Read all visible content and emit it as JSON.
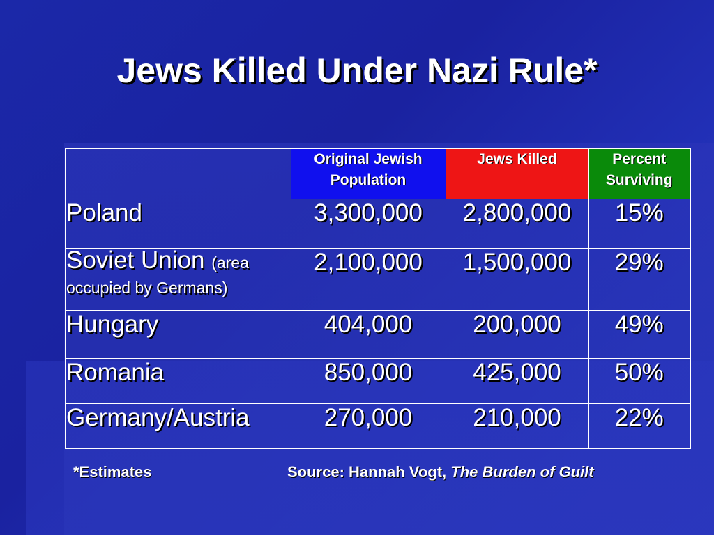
{
  "slide": {
    "title": "Jews Killed Under Nazi Rule*"
  },
  "table": {
    "headers": [
      {
        "label": "",
        "color": ""
      },
      {
        "label": "Original Jewish Population",
        "color": "#1010ee"
      },
      {
        "label": "Jews Killed",
        "color": "#ee1515"
      },
      {
        "label": "Percent Surviving",
        "color": "#0a8a0a"
      }
    ],
    "rows": [
      {
        "country": "Poland",
        "note": "",
        "note2": "",
        "population": "3,300,000",
        "killed": "2,800,000",
        "surviving": "15%"
      },
      {
        "country": "Soviet Union",
        "note": "(area",
        "note2": "occupied by Germans)",
        "population": "2,100,000",
        "killed": "1,500,000",
        "surviving": "29%"
      },
      {
        "country": "Hungary",
        "note": "",
        "note2": "",
        "population": "404,000",
        "killed": "200,000",
        "surviving": "49%"
      },
      {
        "country": "Romania",
        "note": "",
        "note2": "",
        "population": "850,000",
        "killed": "425,000",
        "surviving": "50%"
      },
      {
        "country": "Germany/Austria",
        "note": "",
        "note2": "",
        "population": "270,000",
        "killed": "210,000",
        "surviving": "22%"
      }
    ]
  },
  "footer": {
    "estimates": "*Estimates",
    "source_prefix": "Source: Hannah Vogt,",
    "source_title": "The Burden of Guilt"
  },
  "colors": {
    "background": "#1b28a8",
    "header_population": "#1010ee",
    "header_killed": "#ee1515",
    "header_surviving": "#0a8a0a"
  }
}
